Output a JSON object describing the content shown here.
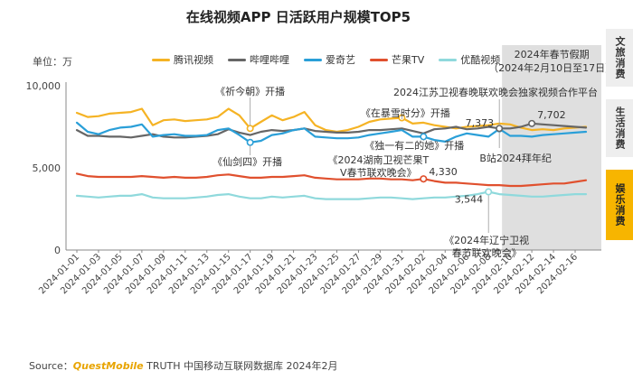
{
  "page": {
    "title": "在线视频APP 日活跃用户规模TOP5",
    "unit_label": "单位：万",
    "source_prefix": "Source：",
    "source_brand": "QuestMobile",
    "source_rest": " TRUTH 中国移动互联网数据库 2024年2月"
  },
  "side_tabs": {
    "culture": "文旅消费",
    "life": "生活消费",
    "entertainment": "娱乐消费"
  },
  "colors": {
    "tencent": "#f5b324",
    "bilibili": "#666666",
    "iqiyi": "#2a9fd8",
    "mango": "#e0502e",
    "youku": "#8fd9dc",
    "holiday_band": "#dcdcdc",
    "entertainment_tab": "#f7b500"
  },
  "chart_data": {
    "type": "line",
    "title": "在线视频APP 日活跃用户规模TOP5",
    "ylabel": "单位：万",
    "xlabel": "",
    "ylim": [
      0,
      10000
    ],
    "yticks": [
      "0",
      "5,000",
      "10,000"
    ],
    "grid": false,
    "legend_position": "top",
    "x": [
      "2024-01-01",
      "2024-01-02",
      "2024-01-03",
      "2024-01-04",
      "2024-01-05",
      "2024-01-06",
      "2024-01-07",
      "2024-01-08",
      "2024-01-09",
      "2024-01-10",
      "2024-01-11",
      "2024-01-12",
      "2024-01-13",
      "2024-01-14",
      "2024-01-15",
      "2024-01-16",
      "2024-01-17",
      "2024-01-18",
      "2024-01-19",
      "2024-01-20",
      "2024-01-21",
      "2024-01-22",
      "2024-01-23",
      "2024-01-24",
      "2024-01-25",
      "2024-01-26",
      "2024-01-27",
      "2024-01-28",
      "2024-01-29",
      "2024-01-30",
      "2024-01-31",
      "2024-02-01",
      "2024-02-02",
      "2024-02-03",
      "2024-02-04",
      "2024-02-05",
      "2024-02-06",
      "2024-02-07",
      "2024-02-08",
      "2024-02-09",
      "2024-02-10",
      "2024-02-11",
      "2024-02-12",
      "2024-02-13",
      "2024-02-14",
      "2024-02-15",
      "2024-02-16",
      "2024-02-17"
    ],
    "x_tick_labels": [
      "2024-01-01",
      "2024-01-03",
      "2024-01-05",
      "2024-01-07",
      "2024-01-09",
      "2024-01-11",
      "2024-01-13",
      "2024-01-15",
      "2024-01-17",
      "2024-01-19",
      "2024-01-21",
      "2024-01-23",
      "2024-01-25",
      "2024-01-27",
      "2024-01-29",
      "2024-01-31",
      "2024-02-02",
      "2024-02-04",
      "2024-02-06",
      "2024-02-08",
      "2024-02-10",
      "2024-02-12",
      "2024-02-14",
      "2024-02-16"
    ],
    "series": [
      {
        "name": "腾讯视频",
        "key": "tencent",
        "values": [
          8350,
          8100,
          8150,
          8300,
          8350,
          8400,
          8600,
          7600,
          7900,
          7950,
          7850,
          7900,
          7950,
          8100,
          8600,
          8200,
          7400,
          7800,
          8200,
          7900,
          8100,
          8400,
          7600,
          7300,
          7200,
          7300,
          7500,
          7800,
          7950,
          8000,
          8050,
          7700,
          7750,
          7600,
          7500,
          7400,
          7500,
          7550,
          7600,
          7700,
          7650,
          7450,
          7300,
          7350,
          7300,
          7400,
          7450,
          7500
        ]
      },
      {
        "name": "哔哩哔哩",
        "key": "bilibili",
        "values": [
          7300,
          6950,
          6950,
          6900,
          6900,
          6850,
          6950,
          7050,
          6900,
          6850,
          6850,
          6900,
          6950,
          7050,
          7350,
          7150,
          7000,
          7200,
          7300,
          7250,
          7300,
          7400,
          7250,
          7200,
          7150,
          7150,
          7200,
          7300,
          7300,
          7350,
          7400,
          7250,
          7100,
          7350,
          7400,
          7500,
          7350,
          7400,
          7500,
          7400,
          7400,
          7500,
          7702,
          7650,
          7600,
          7550,
          7500,
          7450
        ]
      },
      {
        "name": "爱奇艺",
        "key": "iqiyi",
        "values": [
          7750,
          7200,
          7050,
          7300,
          7450,
          7500,
          7650,
          6900,
          7000,
          7050,
          6950,
          6950,
          7000,
          7300,
          7400,
          7000,
          6550,
          6650,
          7000,
          7100,
          7300,
          7400,
          6900,
          6850,
          6800,
          6800,
          6850,
          7000,
          7100,
          7200,
          7300,
          6900,
          6900,
          6700,
          6600,
          6900,
          7100,
          7000,
          6900,
          7373,
          6950,
          6950,
          6900,
          7000,
          7050,
          7100,
          7150,
          7200
        ]
      },
      {
        "name": "芒果TV",
        "key": "mango",
        "values": [
          4650,
          4500,
          4450,
          4450,
          4450,
          4450,
          4500,
          4450,
          4400,
          4450,
          4400,
          4400,
          4450,
          4550,
          4600,
          4500,
          4400,
          4400,
          4450,
          4450,
          4500,
          4550,
          4400,
          4350,
          4300,
          4300,
          4300,
          4350,
          4350,
          4300,
          4300,
          4250,
          4330,
          4200,
          4100,
          4100,
          4050,
          4000,
          3950,
          3950,
          3900,
          3900,
          3950,
          4000,
          4050,
          4050,
          4150,
          4250
        ]
      },
      {
        "name": "优酷视频",
        "key": "youku",
        "values": [
          3300,
          3250,
          3200,
          3250,
          3300,
          3300,
          3400,
          3200,
          3150,
          3150,
          3150,
          3200,
          3250,
          3350,
          3400,
          3250,
          3150,
          3150,
          3250,
          3200,
          3250,
          3300,
          3150,
          3100,
          3100,
          3100,
          3100,
          3150,
          3200,
          3200,
          3150,
          3100,
          3150,
          3200,
          3200,
          3250,
          3300,
          3400,
          3544,
          3400,
          3350,
          3300,
          3250,
          3250,
          3300,
          3350,
          3400,
          3400
        ]
      }
    ],
    "highlight_band": {
      "label_line1": "2024年春节假期",
      "label_line2": "（2024年2月10日至17日）",
      "from": "2024-02-09",
      "to": "2024-02-17"
    },
    "value_labels": [
      {
        "text": "7,702",
        "series": "bilibili",
        "x": "2024-02-12"
      },
      {
        "text": "7,373",
        "series": "iqiyi",
        "x": "2024-02-09"
      },
      {
        "text": "4,330",
        "series": "mango",
        "x": "2024-02-02"
      },
      {
        "text": "3,544",
        "series": "youku",
        "x": "2024-02-08"
      }
    ],
    "annotations": [
      {
        "text": "《祈今朝》开播",
        "series": "tencent",
        "x": "2024-01-17"
      },
      {
        "text": "《仙剑四》开播",
        "series": "iqiyi",
        "x": "2024-01-17"
      },
      {
        "text": "《在暴雪时分》开播",
        "series": "tencent",
        "x": "2024-01-31"
      },
      {
        "text": "《独一有二的她》开播",
        "series": "iqiyi",
        "x": "2024-02-02"
      },
      {
        "text": "《2024湖南卫视芒果TV春节联欢晚会》",
        "series": "mango",
        "x": "2024-02-02"
      },
      {
        "text": "2024江苏卫视春晚联欢晚会独家视频合作平台",
        "series": "bilibili",
        "x": "2024-02-09"
      },
      {
        "text": "B站2024拜年纪",
        "series": "iqiyi",
        "x": "2024-02-09"
      },
      {
        "text": "《2024年辽宁卫视春节联欢晚会》",
        "series": "youku",
        "x": "2024-02-08"
      }
    ]
  }
}
